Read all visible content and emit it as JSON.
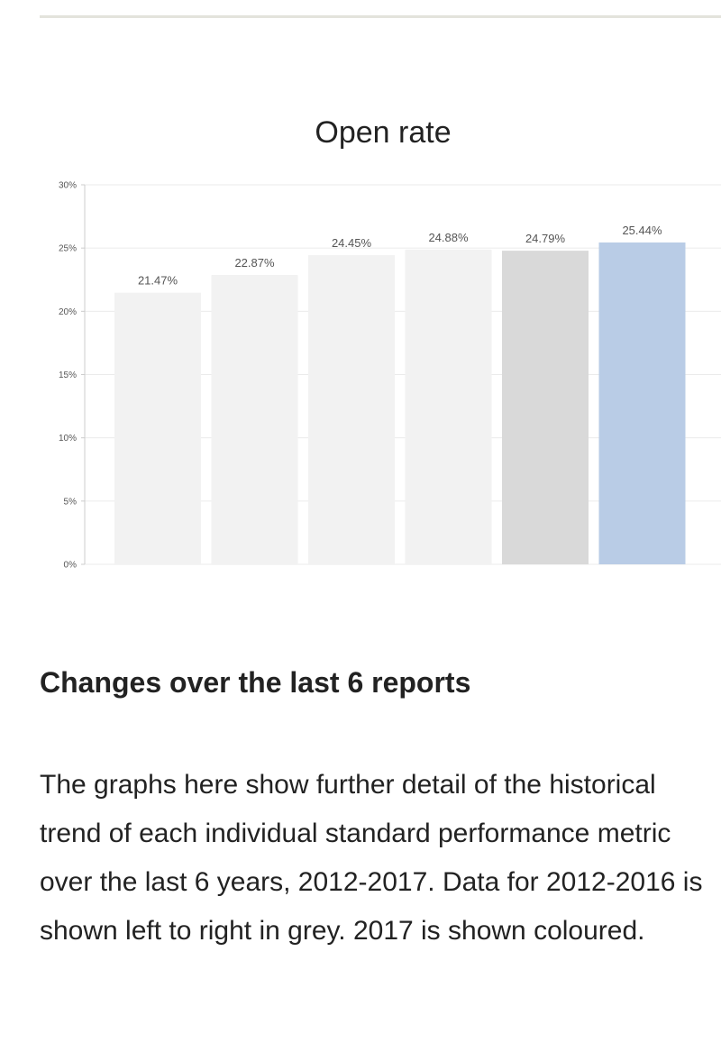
{
  "chart_data": {
    "type": "bar",
    "title": "Open rate",
    "categories": [
      "",
      "",
      "",
      "",
      "",
      ""
    ],
    "values": [
      21.47,
      22.87,
      24.45,
      24.88,
      24.79,
      25.44
    ],
    "value_labels": [
      "21.47%",
      "22.87%",
      "24.45%",
      "24.88%",
      "24.79%",
      "25.44%"
    ],
    "yticks": [
      "0%",
      "5%",
      "10%",
      "15%",
      "20%",
      "25%",
      "30%"
    ],
    "ylim": [
      0,
      30
    ],
    "grid": true,
    "colors": [
      "#f2f2f2",
      "#f2f2f2",
      "#f2f2f2",
      "#f2f2f2",
      "#d9d9d9",
      "#b9cce6"
    ]
  },
  "section": {
    "heading": "Changes over the last 6 reports",
    "body": "The graphs here show further detail of the historical trend of each individual standard performance metric over the last 6 years, 2012-2017. Data for 2012-2016 is shown left to right in grey. 2017 is shown coloured."
  }
}
